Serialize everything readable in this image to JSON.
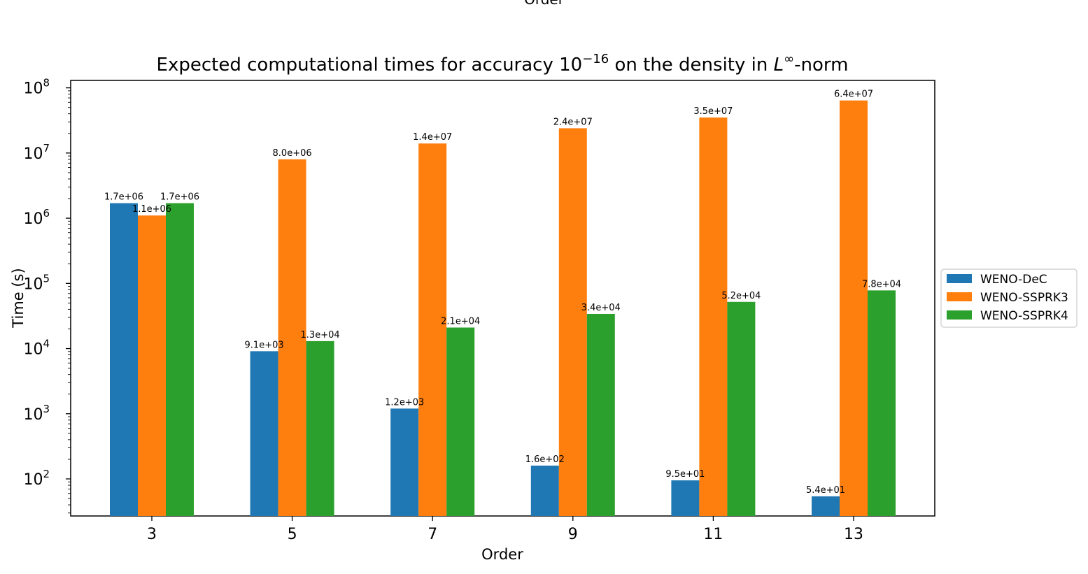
{
  "header_label": "Order",
  "chart_data": {
    "type": "bar",
    "title": "Expected computational times for accuracy 10",
    "title_exponent": "−16",
    "title_rest": " on the density in ",
    "title_norm_symbol": "L",
    "title_norm_exponent": "∞",
    "title_end": "-norm",
    "xlabel": "Order",
    "ylabel": "Time (s)",
    "yscale": "log",
    "ylim": [
      27,
      130000000
    ],
    "categories": [
      "3",
      "5",
      "7",
      "9",
      "11",
      "13"
    ],
    "yticks": [
      {
        "base": "10",
        "exp": "2",
        "value": 100
      },
      {
        "base": "10",
        "exp": "3",
        "value": 1000
      },
      {
        "base": "10",
        "exp": "4",
        "value": 10000
      },
      {
        "base": "10",
        "exp": "5",
        "value": 100000
      },
      {
        "base": "10",
        "exp": "6",
        "value": 1000000
      },
      {
        "base": "10",
        "exp": "7",
        "value": 10000000
      },
      {
        "base": "10",
        "exp": "8",
        "value": 100000000
      }
    ],
    "series": [
      {
        "name": "WENO-DeC",
        "color": "#1f77b4",
        "values": [
          1700000,
          9100,
          1200,
          160,
          95,
          54
        ],
        "labels": [
          "1.7e+06",
          "9.1e+03",
          "1.2e+03",
          "1.6e+02",
          "9.5e+01",
          "5.4e+01"
        ]
      },
      {
        "name": "WENO-SSPRK3",
        "color": "#ff7f0e",
        "values": [
          1100000,
          8000000,
          14000000,
          24000000,
          35000000,
          64000000
        ],
        "labels": [
          "1.1e+06",
          "8.0e+06",
          "1.4e+07",
          "2.4e+07",
          "3.5e+07",
          "6.4e+07"
        ]
      },
      {
        "name": "WENO-SSPRK4",
        "color": "#2ca02c",
        "values": [
          1700000,
          13000,
          21000,
          34000,
          52000,
          78000
        ],
        "labels": [
          "1.7e+06",
          "1.3e+04",
          "2.1e+04",
          "3.4e+04",
          "5.2e+04",
          "7.8e+04"
        ]
      }
    ],
    "legend_position": "right",
    "grid": false
  }
}
